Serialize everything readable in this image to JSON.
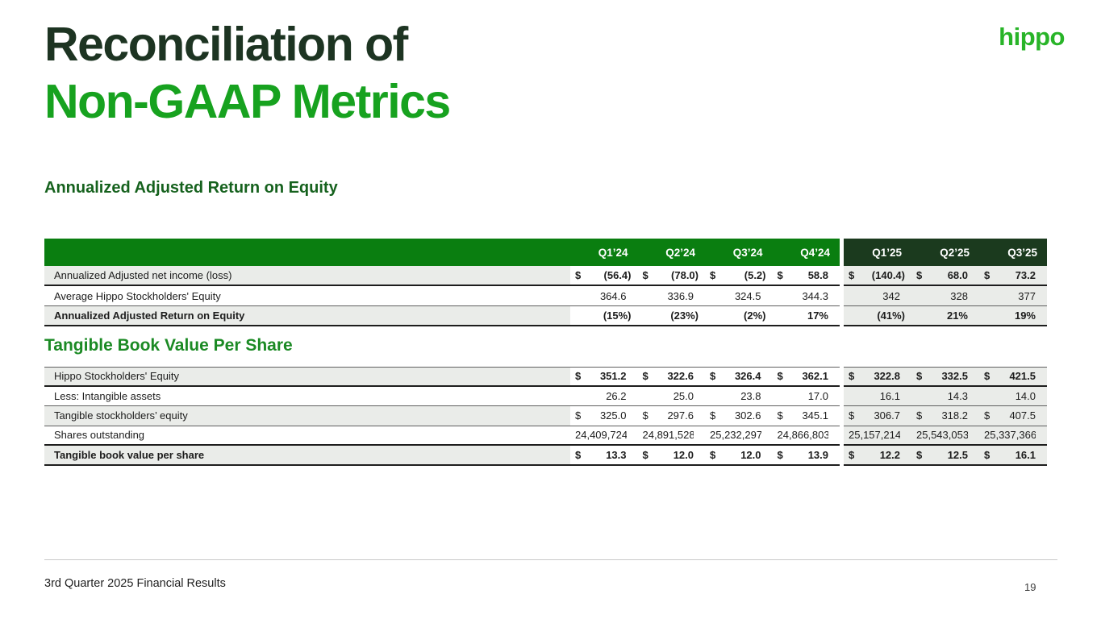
{
  "slide": {
    "title_line1": "Reconciliation of",
    "title_line2": "Non-GAAP Metrics",
    "logo_text": "hippo",
    "footer_text": "3rd Quarter 2025 Financial Results",
    "page_number": "19"
  },
  "colors": {
    "title_dark_green": "#1d3422",
    "title_bright_green": "#17a21f",
    "logo_green": "#28b428",
    "heading1_green": "#15611d",
    "heading2_green": "#1b8a24",
    "header_2024_green": "#0a7e10",
    "header_2025_dark_green": "#1b3a1e",
    "row_gray": "#eaece9"
  },
  "table_header": {
    "quarters": [
      "Q1’24",
      "Q2’24",
      "Q3’24",
      "Q4’24",
      "Q1’25",
      "Q2’25",
      "Q3’25"
    ]
  },
  "sections": [
    {
      "heading": "Annualized Adjusted Return on Equity",
      "show_header": true,
      "rows": [
        {
          "label": "Annualized Adjusted net income (loss)",
          "label_bold": false,
          "values_bold": true,
          "dollar": true,
          "bb": "strong",
          "bt": "",
          "values": [
            "(56.4)",
            "(78.0)",
            "(5.2)",
            "58.8",
            "(140.4)",
            "68.0",
            "73.2"
          ]
        },
        {
          "label": "Average Hippo Stockholders' Equity",
          "label_bold": false,
          "values_bold": false,
          "dollar": false,
          "bb": "light",
          "bt": "",
          "values": [
            "364.6",
            "336.9",
            "324.5",
            "344.3",
            "342",
            "328",
            "377"
          ]
        },
        {
          "label": "Annualized Adjusted Return on Equity",
          "label_bold": true,
          "values_bold": true,
          "dollar": false,
          "bb": "strong",
          "bt": "",
          "values": [
            "(15%)",
            "(23%)",
            "(2%)",
            "17%",
            "(41%)",
            "21%",
            "19%"
          ]
        }
      ]
    },
    {
      "heading": "Tangible Book Value Per Share",
      "show_header": false,
      "rows": [
        {
          "label": "Hippo Stockholders' Equity",
          "label_bold": false,
          "values_bold": true,
          "dollar": true,
          "bb": "strong",
          "bt": "light",
          "values": [
            "351.2",
            "322.6",
            "326.4",
            "362.1",
            "322.8",
            "332.5",
            "421.5"
          ]
        },
        {
          "label": "Less: Intangible assets",
          "label_bold": false,
          "values_bold": false,
          "dollar": false,
          "bb": "light",
          "bt": "",
          "values": [
            "26.2",
            "25.0",
            "23.8",
            "17.0",
            "16.1",
            "14.3",
            "14.0"
          ]
        },
        {
          "label": "Tangible stockholders’ equity",
          "label_bold": false,
          "values_bold": false,
          "dollar": true,
          "bb": "light",
          "bt": "",
          "values": [
            "325.0",
            "297.6",
            "302.6",
            "345.1",
            "306.7",
            "318.2",
            "407.5"
          ]
        },
        {
          "label": "Shares outstanding",
          "label_bold": false,
          "values_bold": false,
          "dollar": false,
          "bb": "strong",
          "bt": "",
          "values": [
            "24,409,724",
            "24,891,528.",
            "25,232,297",
            "24,866,803",
            "25,157,214.",
            "25,543,053",
            "25,337,366"
          ]
        },
        {
          "label": "Tangible book value per share",
          "label_bold": true,
          "values_bold": true,
          "dollar": true,
          "bb": "strong",
          "bt": "",
          "values": [
            "13.3",
            "12.0",
            "12.0",
            "13.9",
            "12.2",
            "12.5",
            "16.1"
          ]
        }
      ]
    }
  ]
}
